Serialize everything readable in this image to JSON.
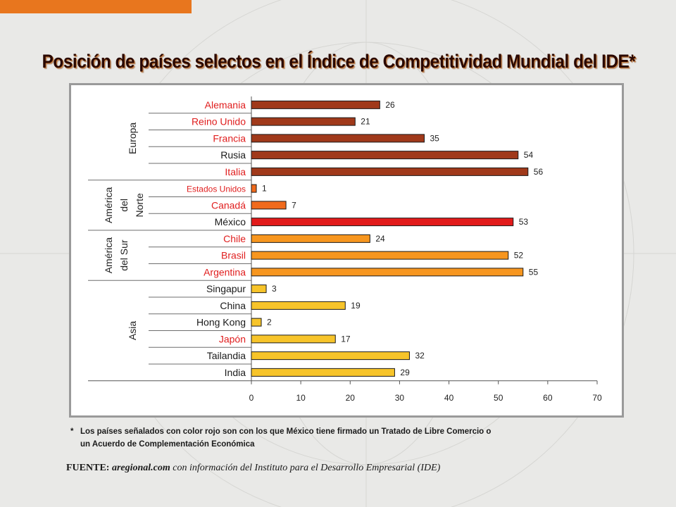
{
  "title": "Posición de países selectos en el Índice de Competitividad Mundial del IDE*",
  "chart_data": {
    "type": "bar",
    "orientation": "horizontal",
    "xlim": [
      0,
      70
    ],
    "xticks": [
      "0",
      "10",
      "20",
      "30",
      "40",
      "50",
      "60",
      "70"
    ],
    "groups": [
      {
        "name": "Europa",
        "lines": [
          "Europa"
        ]
      },
      {
        "name": "América del Norte",
        "lines": [
          "América",
          "del",
          "Norte"
        ]
      },
      {
        "name": "América del Sur",
        "lines": [
          "América",
          "del Sur"
        ]
      },
      {
        "name": "Asia",
        "lines": [
          "Asia"
        ]
      }
    ],
    "categories": [
      "Alemania",
      "Reino Unido",
      "Francia",
      "Rusia",
      "Italia",
      "Estados Unidos",
      "Canadá",
      "México",
      "Chile",
      "Brasil",
      "Argentina",
      "Singapur",
      "China",
      "Hong Kong",
      "Japón",
      "Tailandia",
      "India"
    ],
    "values": [
      26,
      21,
      35,
      54,
      56,
      1,
      7,
      53,
      24,
      52,
      55,
      3,
      19,
      2,
      17,
      32,
      29
    ],
    "group_index": [
      0,
      0,
      0,
      0,
      0,
      1,
      1,
      1,
      2,
      2,
      2,
      3,
      3,
      3,
      3,
      3,
      3
    ],
    "highlighted": [
      true,
      true,
      true,
      false,
      true,
      true,
      true,
      false,
      true,
      true,
      true,
      false,
      false,
      false,
      true,
      false,
      false
    ],
    "colors": {
      "bar_europa": "#a0391a",
      "bar_norte": "#f06a1c",
      "bar_mexico": "#e21b1b",
      "bar_sur": "#f7961f",
      "bar_asia": "#f7c42a",
      "label_highlight": "#e01e1e",
      "label_normal": "#1a1a1a"
    }
  },
  "footnote": {
    "marker": "*",
    "line1": "Los países señalados con color rojo son con los que México tiene firmado un Tratado de Libre Comercio o",
    "line2": "un Acuerdo de Complementación Económica"
  },
  "source": {
    "lead": "FUENTE:",
    "brand": "aregional.com",
    "rest": "con información del Instituto para el Desarrollo Empresarial (IDE)"
  }
}
